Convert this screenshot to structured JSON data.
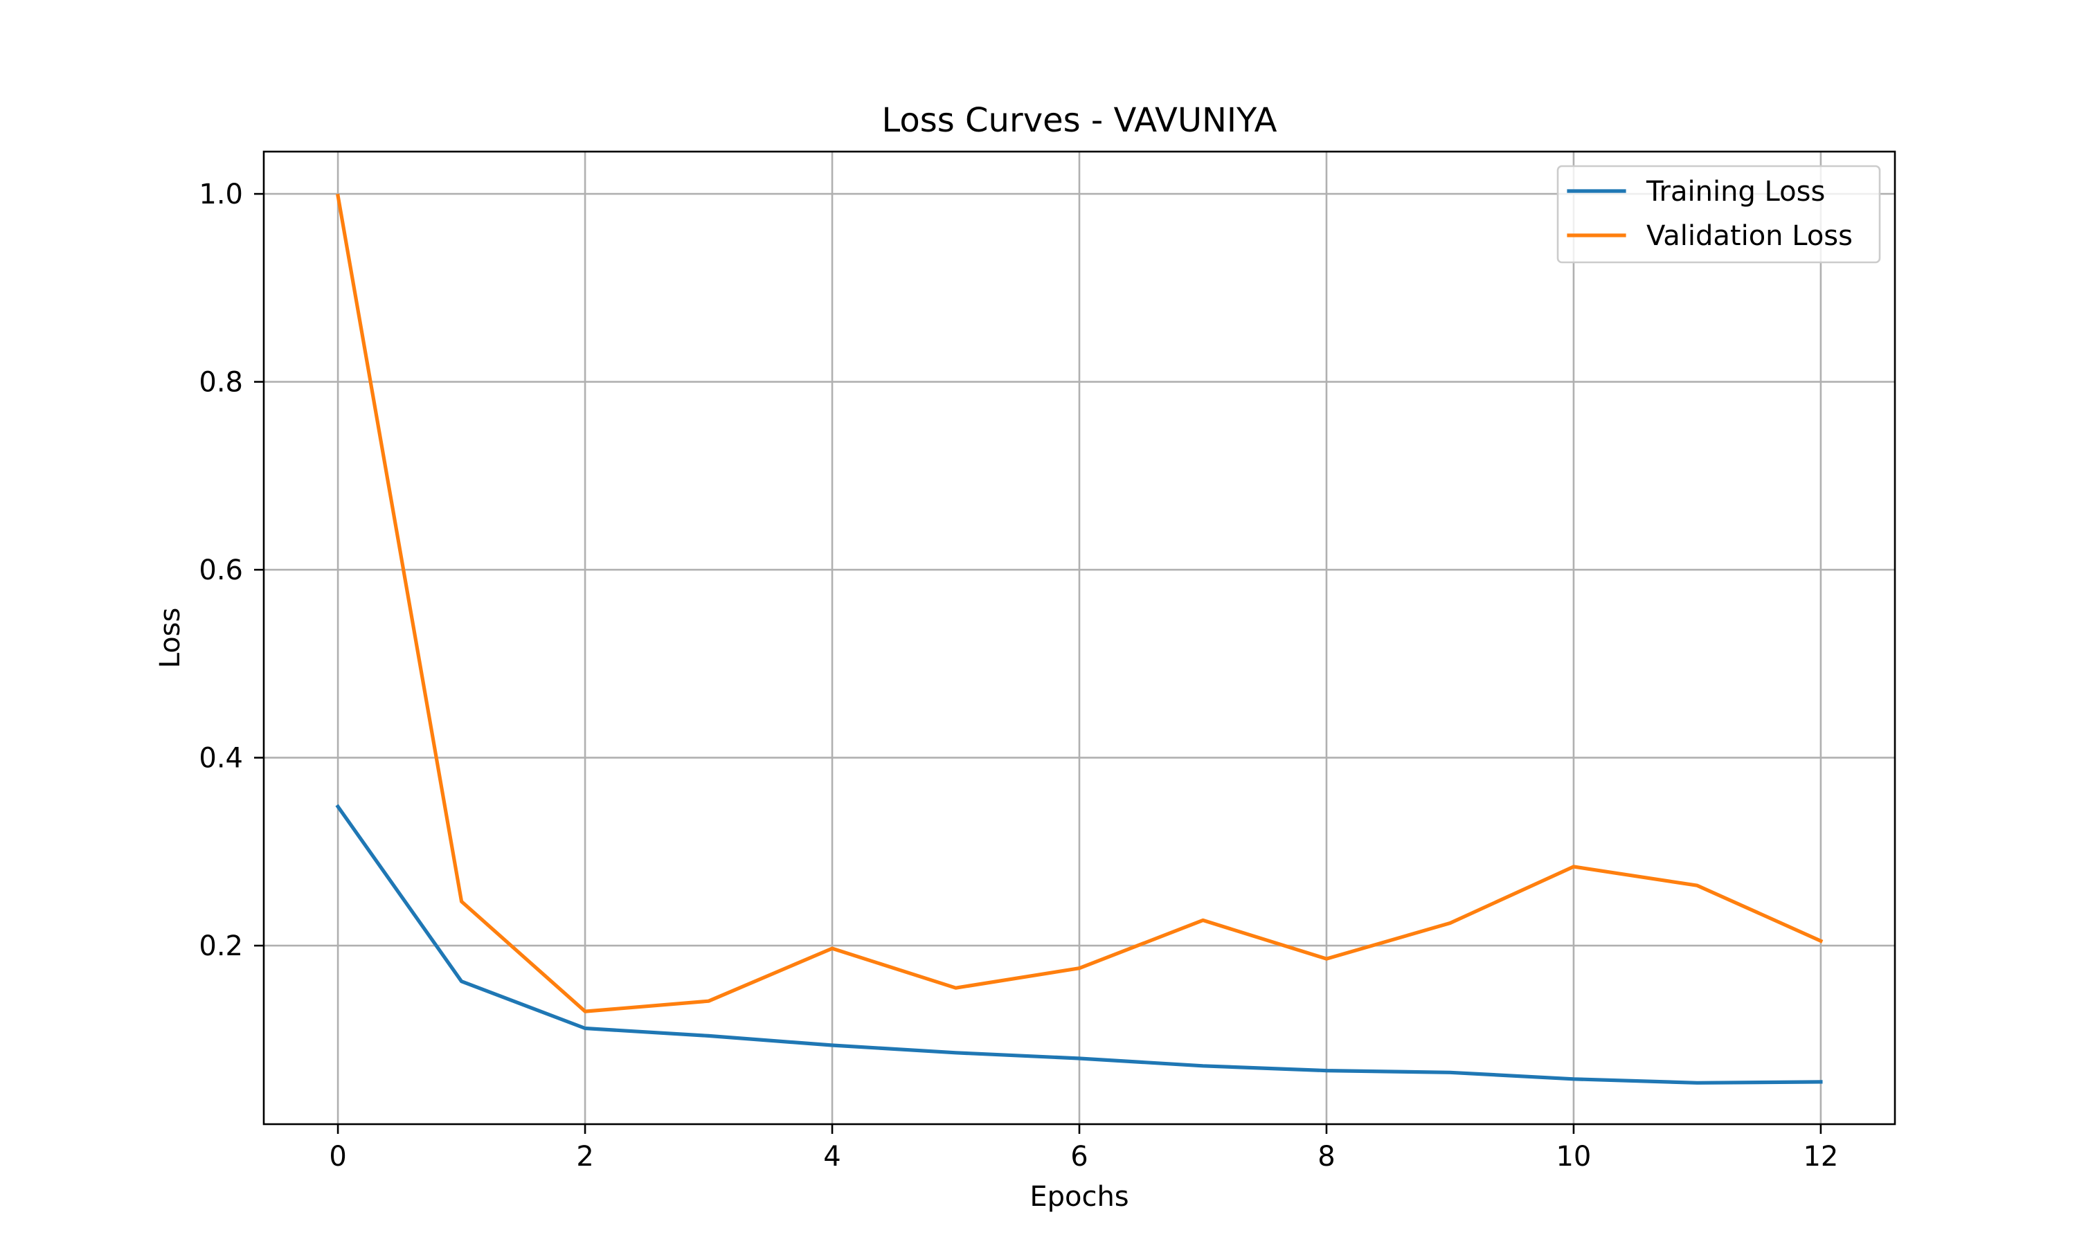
{
  "chart_data": {
    "type": "line",
    "title": "Loss Curves - VAVUNIYA",
    "xlabel": "Epochs",
    "ylabel": "Loss",
    "x": [
      0,
      1,
      2,
      3,
      4,
      5,
      6,
      7,
      8,
      9,
      10,
      11,
      12
    ],
    "xlim": [
      -0.6,
      12.6
    ],
    "ylim": [
      0.01,
      1.045
    ],
    "xticks": [
      0,
      2,
      4,
      6,
      8,
      10,
      12
    ],
    "xtick_labels": [
      "0",
      "2",
      "4",
      "6",
      "8",
      "10",
      "12"
    ],
    "yticks": [
      0.2,
      0.4,
      0.6,
      0.8,
      1.0
    ],
    "ytick_labels": [
      "0.2",
      "0.4",
      "0.6",
      "0.8",
      "1.0"
    ],
    "grid": true,
    "legend_position": "upper right",
    "series": [
      {
        "name": "Training Loss",
        "color": "#1f77b4",
        "values": [
          0.348,
          0.162,
          0.112,
          0.104,
          0.094,
          0.086,
          0.08,
          0.072,
          0.067,
          0.065,
          0.058,
          0.054,
          0.055
        ]
      },
      {
        "name": "Validation Loss",
        "color": "#ff7f0e",
        "values": [
          0.998,
          0.247,
          0.13,
          0.141,
          0.197,
          0.155,
          0.176,
          0.227,
          0.186,
          0.224,
          0.284,
          0.264,
          0.205
        ]
      }
    ]
  }
}
